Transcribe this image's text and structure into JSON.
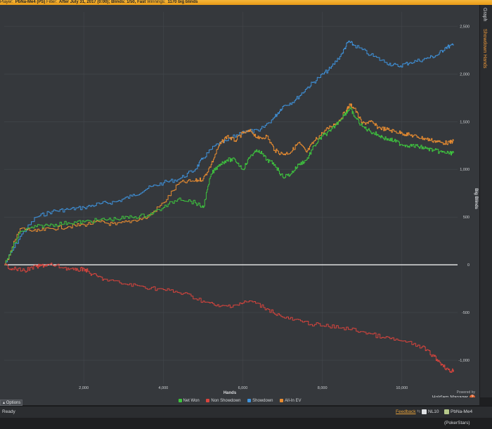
{
  "header": {
    "player_label": "Player:",
    "player_value": "PbNa-Me4 (PS)",
    "filter_label": "Filter:",
    "filter_value": "After July 31, 2017 (0:00); Blinds: 1/50, Fast",
    "winnings_label": "Winnings:",
    "winnings_value": "1170 big blinds"
  },
  "side_tabs": {
    "graph": "Graph",
    "shared": "Showdown Hands"
  },
  "legend": [
    "Net Won",
    "Non Showdown",
    "Showdown",
    "All-In EV"
  ],
  "options_label": "Options",
  "branding": {
    "powered_by": "Powered by",
    "name": "Hold'em Manager"
  },
  "status": {
    "ready": "Ready",
    "feedback": "Feedback",
    "stake": "NL10",
    "player": "PbNa-Me4 (PokerStars)"
  },
  "colors": {
    "net_won": "#3ec43e",
    "non_showdown": "#d9443d",
    "showdown": "#3f93dd",
    "all_in_ev": "#e98c30",
    "zero_line": "#ffffff"
  },
  "chart_data": {
    "type": "line",
    "xlabel": "Hands",
    "ylabel": "Big Blinds",
    "xlim": [
      0,
      11400
    ],
    "ylim": [
      -1250,
      2650
    ],
    "x_ticks": [
      2000,
      4000,
      6000,
      8000,
      10000
    ],
    "x_tick_labels": [
      "2,000",
      "4,000",
      "6,000",
      "8,000",
      "10,000"
    ],
    "y_ticks": [
      2500,
      2000,
      1500,
      1000,
      500,
      0,
      -500,
      -1000
    ],
    "y_tick_labels": [
      "2,500",
      "2,000",
      "1,500",
      "1,000",
      "500",
      "0",
      "-500",
      "-1,000"
    ],
    "grid": true,
    "legend_position": "bottom",
    "series": [
      {
        "name": "Showdown",
        "x": [
          0,
          400,
          800,
          1200,
          1600,
          2000,
          2400,
          2800,
          3200,
          3600,
          4000,
          4400,
          4800,
          5000,
          5300,
          5600,
          6000,
          6400,
          6800,
          7000,
          7300,
          7600,
          7900,
          8200,
          8500,
          8650,
          8800,
          9200,
          9600,
          9900,
          10200,
          10600,
          10900,
          11100,
          11300
        ],
        "y": [
          0,
          300,
          500,
          560,
          580,
          600,
          640,
          660,
          720,
          800,
          860,
          900,
          1000,
          1120,
          1250,
          1300,
          1400,
          1400,
          1550,
          1660,
          1720,
          1850,
          1960,
          2060,
          2220,
          2340,
          2300,
          2200,
          2120,
          2080,
          2120,
          2160,
          2200,
          2280,
          2300
        ]
      },
      {
        "name": "All-In EV",
        "x": [
          0,
          400,
          800,
          1200,
          1600,
          2000,
          2400,
          2800,
          3200,
          3600,
          4000,
          4400,
          4800,
          5000,
          5200,
          5400,
          5600,
          5800,
          6000,
          6200,
          6400,
          6600,
          6800,
          7000,
          7200,
          7400,
          7600,
          7800,
          8000,
          8200,
          8400,
          8600,
          8700,
          8800,
          9000,
          9200,
          9400,
          9600,
          9800,
          10000,
          10200,
          10400,
          10600,
          10800,
          11000,
          11200,
          11300
        ],
        "y": [
          0,
          380,
          350,
          380,
          400,
          420,
          450,
          420,
          460,
          500,
          650,
          860,
          880,
          900,
          1050,
          1250,
          1350,
          1300,
          1380,
          1400,
          1320,
          1350,
          1200,
          1160,
          1180,
          1280,
          1180,
          1300,
          1380,
          1450,
          1500,
          1620,
          1680,
          1640,
          1480,
          1500,
          1440,
          1420,
          1400,
          1380,
          1360,
          1340,
          1320,
          1300,
          1280,
          1280,
          1300
        ]
      },
      {
        "name": "Net Won",
        "x": [
          0,
          400,
          800,
          1200,
          1600,
          2000,
          2400,
          2800,
          3200,
          3600,
          4000,
          4400,
          4800,
          5000,
          5200,
          5400,
          5600,
          5800,
          6000,
          6200,
          6400,
          6600,
          6800,
          7000,
          7200,
          7400,
          7600,
          7800,
          8000,
          8200,
          8400,
          8600,
          8700,
          8800,
          9000,
          9200,
          9400,
          9600,
          9800,
          10000,
          10200,
          10400,
          10600,
          10800,
          11000,
          11200,
          11300
        ],
        "y": [
          0,
          350,
          400,
          420,
          440,
          450,
          470,
          480,
          500,
          520,
          600,
          700,
          650,
          600,
          950,
          1050,
          1100,
          1100,
          1000,
          1150,
          1200,
          1100,
          1050,
          920,
          950,
          1050,
          1100,
          1250,
          1350,
          1400,
          1500,
          1600,
          1640,
          1560,
          1450,
          1400,
          1360,
          1320,
          1300,
          1260,
          1250,
          1240,
          1220,
          1200,
          1180,
          1170,
          1170
        ]
      },
      {
        "name": "Non Showdown",
        "x": [
          0,
          200,
          500,
          800,
          1000,
          1200,
          1500,
          1800,
          2000,
          2200,
          2500,
          3000,
          3500,
          4000,
          4500,
          5000,
          5400,
          5800,
          6200,
          6600,
          7000,
          7500,
          8000,
          8500,
          9000,
          9500,
          10000,
          10500,
          10800,
          11000,
          11200,
          11300
        ],
        "y": [
          0,
          -40,
          -60,
          -20,
          -5,
          0,
          -30,
          -60,
          -40,
          -100,
          -150,
          -200,
          -230,
          -260,
          -300,
          -380,
          -440,
          -420,
          -380,
          -460,
          -550,
          -600,
          -640,
          -660,
          -700,
          -760,
          -800,
          -860,
          -960,
          -1040,
          -1120,
          -1100
        ]
      }
    ]
  }
}
